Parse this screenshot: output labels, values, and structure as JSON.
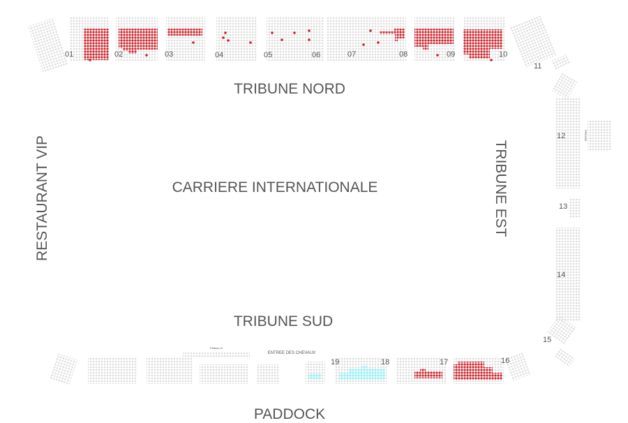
{
  "colors": {
    "available": "#dcdcdc",
    "sold": "#cc2229",
    "selected": "#a8f0f5",
    "label": "#555555"
  },
  "areas": {
    "north": "TRIBUNE NORD",
    "arena": "CARRIERE INTERNATIONALE",
    "south": "TRIBUNE SUD",
    "paddock": "PADDOCK",
    "vip": "RESTAURANT VIP",
    "east": "TRIBUNE EST",
    "horse_entrance": "ENTREE DES CHEVAUX",
    "tv_platform": "Plateau tv",
    "press": "PRESSE"
  },
  "sections": [
    {
      "id": "01",
      "status": "sold"
    },
    {
      "id": "02",
      "status": "sold"
    },
    {
      "id": "03",
      "status": "partial"
    },
    {
      "id": "04",
      "status": "available"
    },
    {
      "id": "05",
      "status": "available"
    },
    {
      "id": "06",
      "status": "available"
    },
    {
      "id": "07",
      "status": "available"
    },
    {
      "id": "08",
      "status": "partial"
    },
    {
      "id": "09",
      "status": "sold"
    },
    {
      "id": "10",
      "status": "sold"
    },
    {
      "id": "11",
      "status": "available"
    },
    {
      "id": "12",
      "status": "available"
    },
    {
      "id": "13",
      "status": "available"
    },
    {
      "id": "14",
      "status": "available"
    },
    {
      "id": "15",
      "status": "available"
    },
    {
      "id": "16",
      "status": "sold"
    },
    {
      "id": "17",
      "status": "partial"
    },
    {
      "id": "18",
      "status": "selected"
    },
    {
      "id": "19",
      "status": "selected"
    }
  ]
}
